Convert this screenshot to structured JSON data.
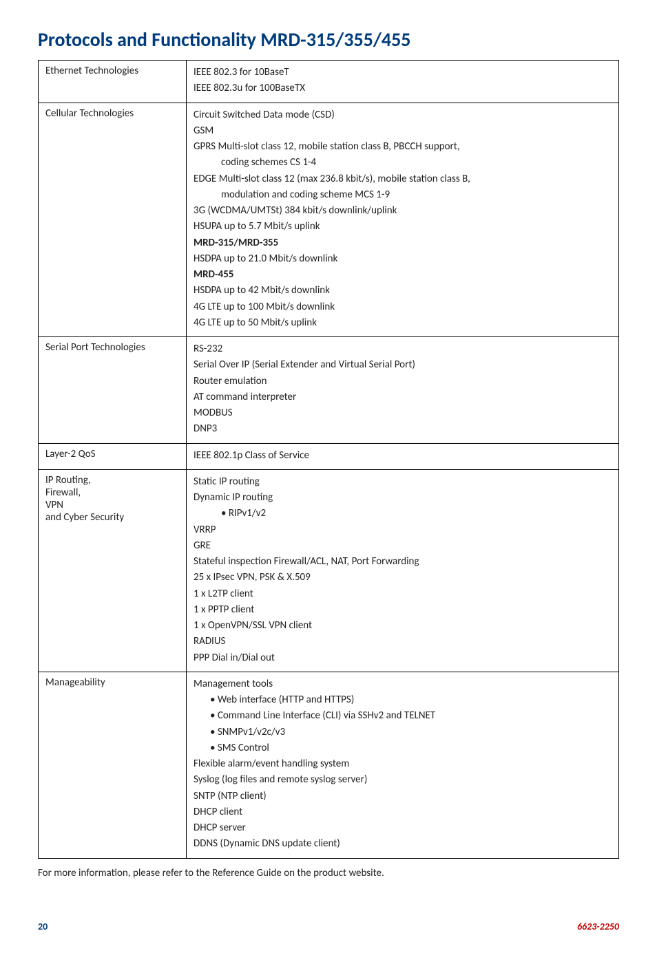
{
  "title": "Protocols and Functionality MRD-315/355/455",
  "rows": [
    {
      "label": "Ethernet Technologies",
      "lines": [
        {
          "text": "IEEE 802.3 for 10BaseT"
        },
        {
          "text": "IEEE 802.3u for 100BaseTX"
        }
      ]
    },
    {
      "label": "Cellular Technologies",
      "lines": [
        {
          "text": "Circuit Switched Data mode (CSD)"
        },
        {
          "text": "GSM"
        },
        {
          "text": "GPRS Multi-slot class 12, mobile station class B, PBCCH support,"
        },
        {
          "text": "coding schemes CS 1-4",
          "indent": "sub"
        },
        {
          "text": "EDGE Multi-slot class 12 (max 236.8 kbit/s), mobile station class B,"
        },
        {
          "text": "modulation and coding scheme MCS 1-9",
          "indent": "sub"
        },
        {
          "text": "3G (WCDMA/UMTSt) 384 kbit/s downlink/uplink"
        },
        {
          "text": "HSUPA up to 5.7 Mbit/s uplink"
        },
        {
          "text": "MRD-315/MRD-355",
          "bold": true
        },
        {
          "text": "HSDPA up to 21.0 Mbit/s downlink"
        },
        {
          "text": "MRD-455",
          "bold": true
        },
        {
          "text": "HSDPA up to 42 Mbit/s downlink"
        },
        {
          "text": "4G LTE up to 100 Mbit/s downlink"
        },
        {
          "text": "4G LTE up to 50 Mbit/s uplink"
        }
      ]
    },
    {
      "label": "Serial Port Technologies",
      "lines": [
        {
          "text": "RS-232"
        },
        {
          "text": "Serial Over IP (Serial Extender and Virtual Serial Port)"
        },
        {
          "text": "Router emulation"
        },
        {
          "text": "AT command interpreter"
        },
        {
          "text": "MODBUS"
        },
        {
          "text": "DNP3"
        }
      ]
    },
    {
      "label": "Layer-2 QoS",
      "lines": [
        {
          "text": "IEEE 802.1p Class of Service"
        }
      ]
    },
    {
      "label": "IP Routing,\nFirewall,\nVPN\nand Cyber Security",
      "lines": [
        {
          "text": "Static IP routing"
        },
        {
          "text": "Dynamic IP routing"
        },
        {
          "text": "• RIPv1/v2",
          "indent": "sub"
        },
        {
          "text": "VRRP"
        },
        {
          "text": "GRE"
        },
        {
          "text": "Stateful inspection Firewall/ACL, NAT, Port Forwarding"
        },
        {
          "text": "25 x IPsec VPN, PSK & X.509"
        },
        {
          "text": "1 x L2TP client"
        },
        {
          "text": "1 x PPTP client"
        },
        {
          "text": "1 x OpenVPN/SSL VPN client"
        },
        {
          "text": "RADIUS"
        },
        {
          "text": "PPP Dial in/Dial out"
        }
      ]
    },
    {
      "label": "Manageability",
      "lines": [
        {
          "text": "Management tools"
        },
        {
          "text": "• Web interface (HTTP and HTTPS)",
          "indent": "sub2"
        },
        {
          "text": "• Command Line Interface (CLI) via SSHv2 and TELNET",
          "indent": "sub2"
        },
        {
          "text": "• SNMPv1/v2c/v3",
          "indent": "sub2"
        },
        {
          "text": "• SMS Control",
          "indent": "sub2"
        },
        {
          "text": "Flexible alarm/event handling system"
        },
        {
          "text": "Syslog (log files and remote syslog server)"
        },
        {
          "text": "SNTP (NTP client)"
        },
        {
          "text": "DHCP client"
        },
        {
          "text": "DHCP server"
        },
        {
          "text": "DDNS (Dynamic DNS update client)"
        }
      ]
    }
  ],
  "footnote": "For more information, please refer to the Reference Guide on the product website.",
  "page_number": "20",
  "doc_number": "6623-2250"
}
